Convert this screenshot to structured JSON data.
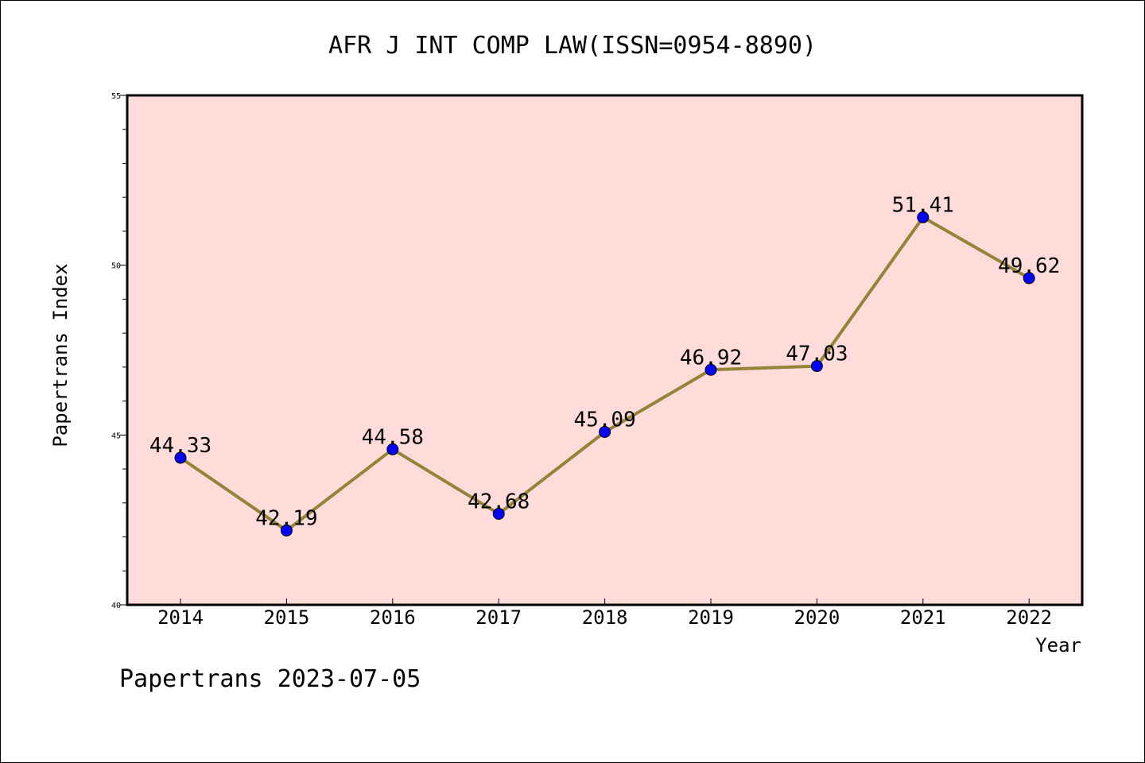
{
  "chart_data": {
    "type": "line",
    "title": "AFR J INT COMP LAW(ISSN=0954-8890)",
    "xlabel": "Year",
    "ylabel": "Papertrans Index",
    "x": [
      "2014",
      "2015",
      "2016",
      "2017",
      "2018",
      "2019",
      "2020",
      "2021",
      "2022"
    ],
    "y_ticks": [
      40,
      45,
      50,
      55
    ],
    "ylim": [
      40,
      55
    ],
    "grid": false,
    "series": [
      {
        "values": [
          44.33,
          42.19,
          44.58,
          42.68,
          45.09,
          46.92,
          47.03,
          51.41,
          49.62
        ],
        "labels": [
          "44.33",
          "42.19",
          "44.58",
          "42.68",
          "45.09",
          "46.92",
          "47.03",
          "51.41",
          "49.62"
        ]
      }
    ],
    "colors": {
      "plot_background": "#FFDCDA",
      "line": "#948438",
      "marker": "#0000FF"
    }
  },
  "footer": {
    "text": "Papertrans 2023-07-05"
  }
}
